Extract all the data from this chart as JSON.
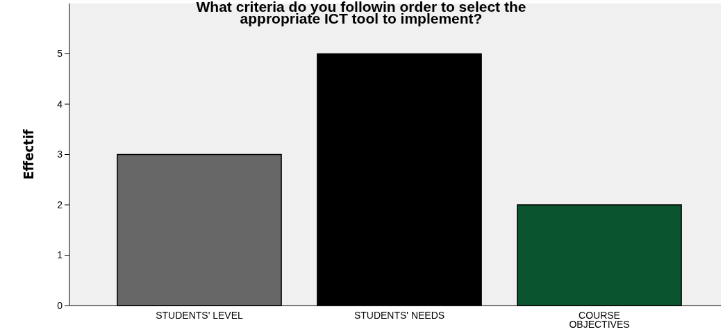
{
  "chart_data": {
    "type": "bar",
    "title": "What criteria do you followin order to select the appropriate ICT tool to implement?",
    "ylabel": "Effectif",
    "categories": [
      "STUDENTS' LEVEL",
      "STUDENTS' NEEDS",
      "COURSE OBJECTIVES"
    ],
    "values": [
      3,
      5,
      2
    ],
    "colors": [
      "#676767",
      "#000000",
      "#0b5430"
    ],
    "ylim": [
      0,
      6
    ],
    "yticks": [
      0,
      1,
      2,
      3,
      4,
      5
    ]
  }
}
